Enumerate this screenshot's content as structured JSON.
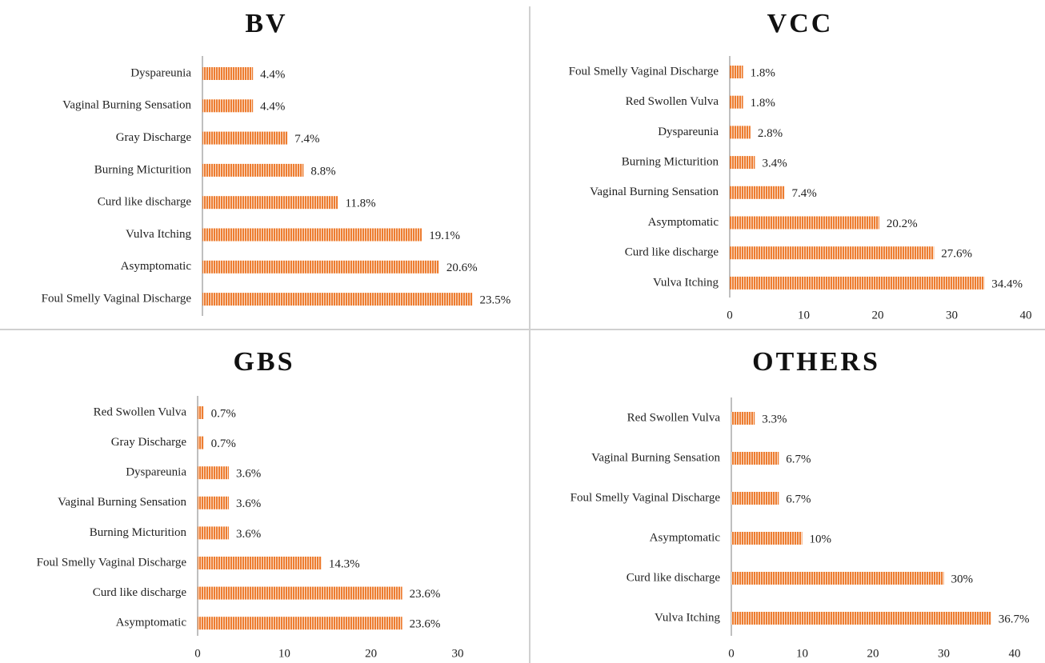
{
  "chart_data": [
    {
      "type": "bar",
      "orientation": "horizontal",
      "title": "BV",
      "color": "#ed7d31",
      "categories": [
        "Dyspareunia",
        "Vaginal Burning Sensation",
        "Gray Discharge",
        "Burning Micturition",
        "Curd like discharge",
        "Vulva Itching",
        "Asymptomatic",
        "Foul Smelly Vaginal Discharge"
      ],
      "values": [
        4.4,
        4.4,
        7.4,
        8.8,
        11.8,
        19.1,
        20.6,
        23.5
      ],
      "value_labels": [
        "4.4%",
        "4.4%",
        "7.4%",
        "8.8%",
        "11.8%",
        "19.1%",
        "20.6%",
        "23.5%"
      ],
      "xlim": [
        0,
        25
      ]
    },
    {
      "type": "bar",
      "orientation": "horizontal",
      "title": "VCC",
      "color": "#ed7d31",
      "categories": [
        "Foul Smelly Vaginal Discharge",
        "Red Swollen Vulva",
        "Dyspareunia",
        "Burning Micturition",
        "Vaginal Burning Sensation",
        "Asymptomatic",
        "Curd like discharge",
        "Vulva Itching"
      ],
      "values": [
        1.8,
        1.8,
        2.8,
        3.4,
        7.4,
        20.2,
        27.6,
        34.4
      ],
      "value_labels": [
        "1.8%",
        "1.8%",
        "2.8%",
        "3.4%",
        "7.4%",
        "20.2%",
        "27.6%",
        "34.4%"
      ],
      "xlim": [
        0,
        40
      ],
      "xticks": [
        0,
        10,
        20,
        30,
        40
      ]
    },
    {
      "type": "bar",
      "orientation": "horizontal",
      "title": "GBS",
      "color": "#ed7d31",
      "categories": [
        "Red Swollen Vulva",
        "Gray Discharge",
        "Dyspareunia",
        "Vaginal Burning Sensation",
        "Burning Micturition",
        "Foul Smelly Vaginal Discharge",
        "Curd like discharge",
        "Asymptomatic"
      ],
      "values": [
        0.7,
        0.7,
        3.6,
        3.6,
        3.6,
        14.3,
        23.6,
        23.6
      ],
      "value_labels": [
        "0.7%",
        "0.7%",
        "3.6%",
        "3.6%",
        "3.6%",
        "14.3%",
        "23.6%",
        "23.6%"
      ],
      "xlim": [
        0,
        30
      ],
      "xticks": [
        0,
        10,
        20,
        30
      ]
    },
    {
      "type": "bar",
      "orientation": "horizontal",
      "title": "OTHERS",
      "color": "#ed7d31",
      "categories": [
        "Red Swollen Vulva",
        "Vaginal Burning Sensation",
        "Foul Smelly Vaginal Discharge",
        "Asymptomatic",
        "Curd like discharge",
        "Vulva Itching"
      ],
      "values": [
        3.3,
        6.7,
        6.7,
        10,
        30,
        36.7
      ],
      "value_labels": [
        "3.3%",
        "6.7%",
        "6.7%",
        "10%",
        "30%",
        "36.7%"
      ],
      "xlim": [
        0,
        40
      ],
      "xticks": [
        0,
        10,
        20,
        30,
        40
      ]
    }
  ]
}
